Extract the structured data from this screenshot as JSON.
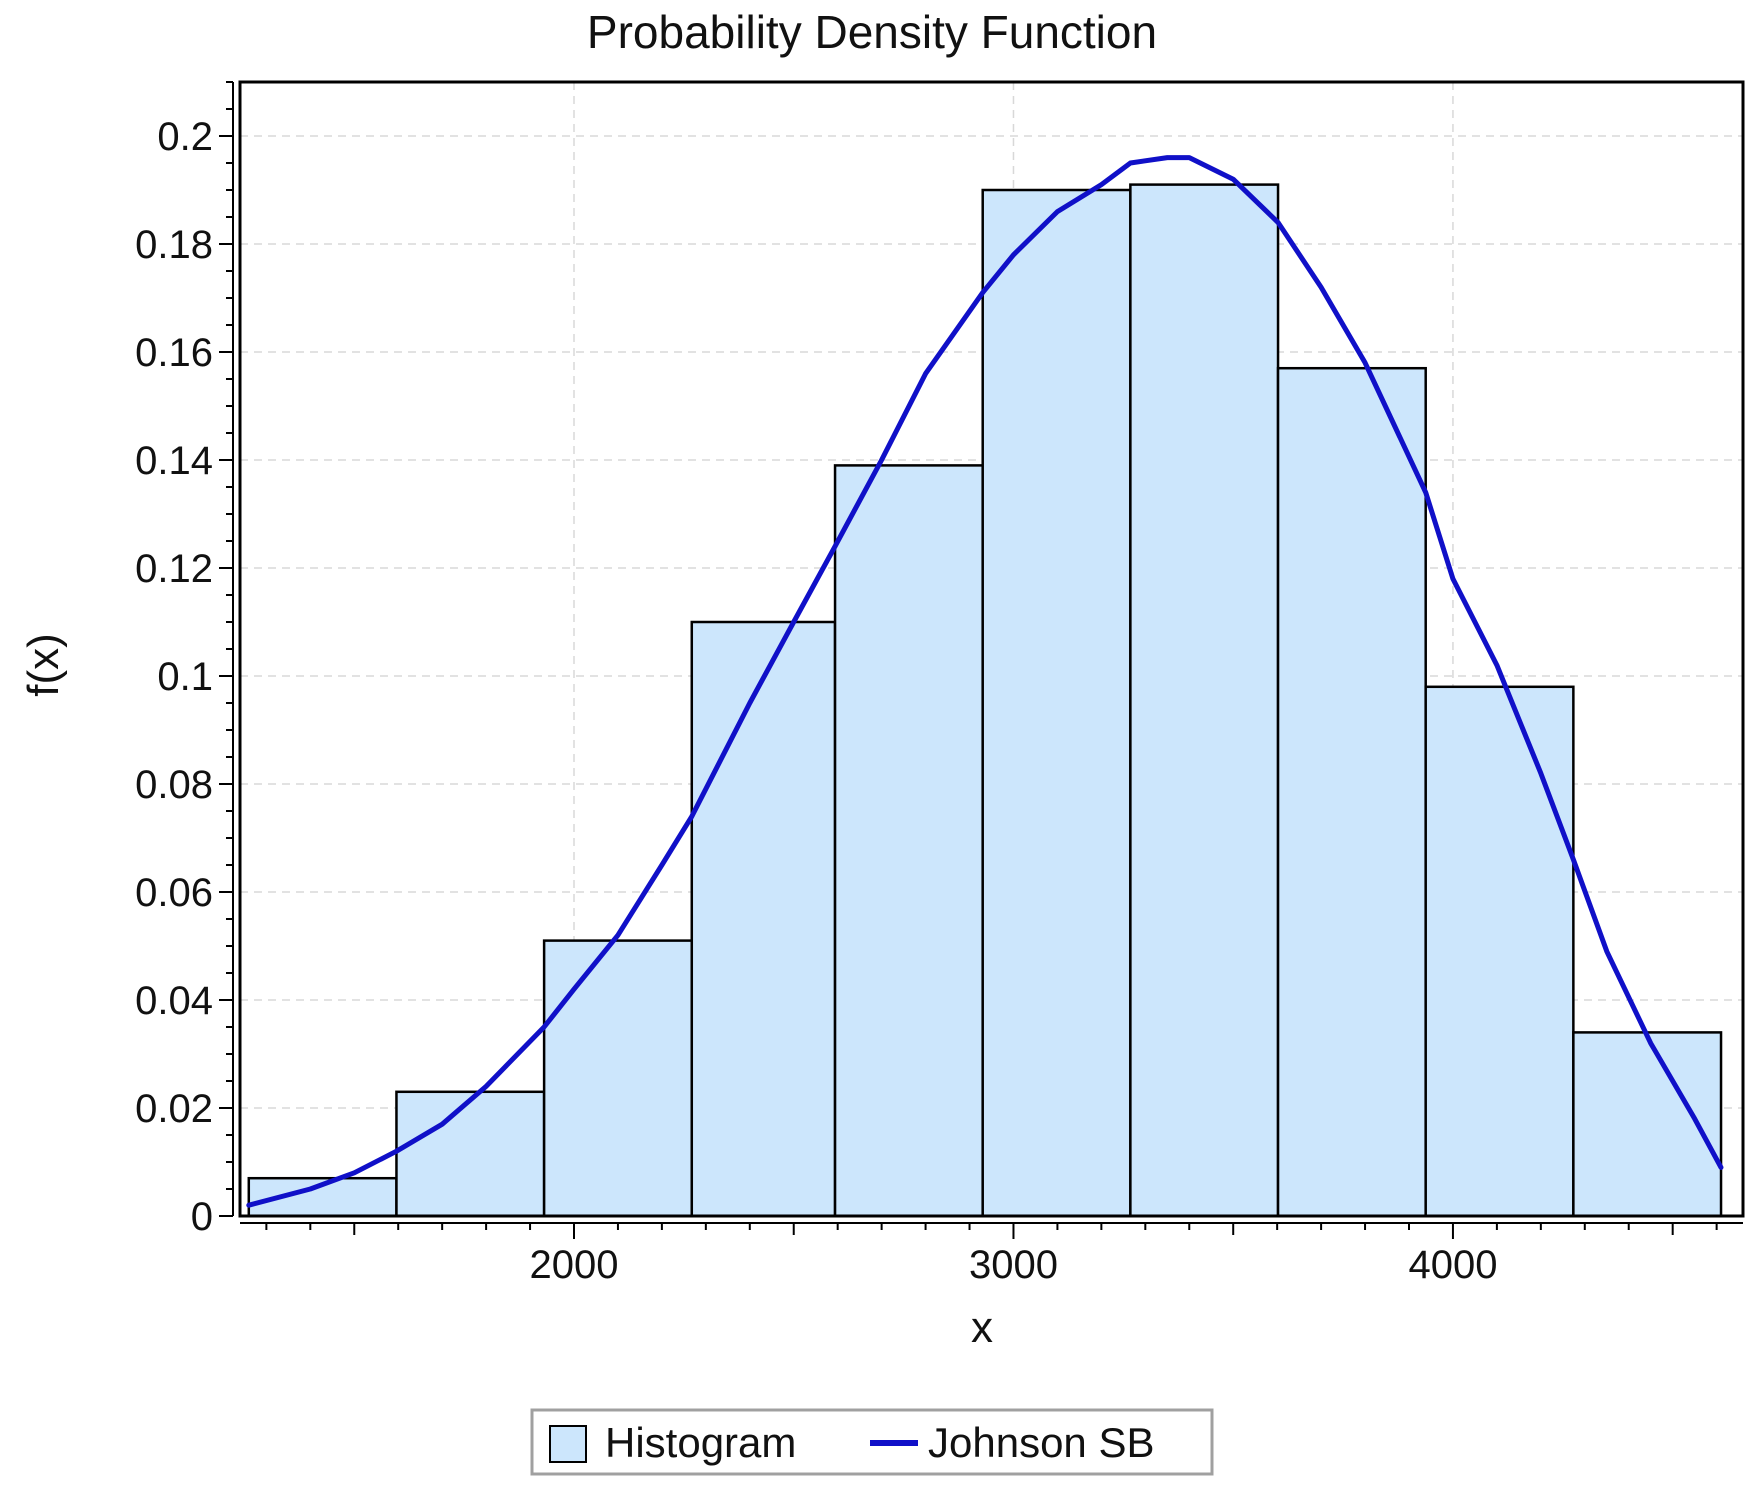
{
  "chart_data": {
    "type": "bar",
    "title": "Probability Density Function",
    "xlabel": "x",
    "ylabel": "f(x)",
    "xlim": [
      1240,
      4660
    ],
    "ylim": [
      0,
      0.21
    ],
    "x_ticks": [
      2000,
      3000,
      4000
    ],
    "x_tick_labels": [
      "2000",
      "3000",
      "4000"
    ],
    "y_ticks": [
      0,
      0.02,
      0.04,
      0.06,
      0.08,
      0.1,
      0.12,
      0.14,
      0.16,
      0.18,
      0.2
    ],
    "y_tick_labels": [
      "0",
      "0.02",
      "0.04",
      "0.06",
      "0.08",
      "0.1",
      "0.12",
      "0.14",
      "0.16",
      "0.18",
      "0.2"
    ],
    "grid": true,
    "legend_position": "bottom-center",
    "histogram": {
      "name": "Histogram",
      "bin_edges": [
        1260,
        1596,
        1932,
        2268,
        2594,
        2930,
        3266,
        3602,
        3938,
        4274,
        4610
      ],
      "values": [
        0.007,
        0.023,
        0.051,
        0.11,
        0.139,
        0.19,
        0.191,
        0.157,
        0.098,
        0.034
      ],
      "fill_color": "#cce6fc",
      "edge_color": "#000000"
    },
    "curve": {
      "name": "Johnson SB",
      "color": "#1010c8",
      "points": [
        [
          1260,
          0.002
        ],
        [
          1400,
          0.005
        ],
        [
          1500,
          0.008
        ],
        [
          1596,
          0.012
        ],
        [
          1700,
          0.017
        ],
        [
          1800,
          0.024
        ],
        [
          1932,
          0.035
        ],
        [
          2000,
          0.042
        ],
        [
          2100,
          0.052
        ],
        [
          2200,
          0.065
        ],
        [
          2268,
          0.074
        ],
        [
          2400,
          0.095
        ],
        [
          2500,
          0.11
        ],
        [
          2594,
          0.124
        ],
        [
          2700,
          0.14
        ],
        [
          2800,
          0.156
        ],
        [
          2930,
          0.171
        ],
        [
          3000,
          0.178
        ],
        [
          3100,
          0.186
        ],
        [
          3200,
          0.191
        ],
        [
          3266,
          0.195
        ],
        [
          3350,
          0.196
        ],
        [
          3400,
          0.196
        ],
        [
          3500,
          0.192
        ],
        [
          3602,
          0.184
        ],
        [
          3700,
          0.172
        ],
        [
          3800,
          0.158
        ],
        [
          3938,
          0.134
        ],
        [
          4000,
          0.118
        ],
        [
          4100,
          0.102
        ],
        [
          4200,
          0.082
        ],
        [
          4274,
          0.066
        ],
        [
          4350,
          0.049
        ],
        [
          4450,
          0.032
        ],
        [
          4550,
          0.018
        ],
        [
          4610,
          0.009
        ]
      ]
    }
  },
  "legend": {
    "histogram_label": "Histogram",
    "curve_label": "Johnson SB"
  }
}
